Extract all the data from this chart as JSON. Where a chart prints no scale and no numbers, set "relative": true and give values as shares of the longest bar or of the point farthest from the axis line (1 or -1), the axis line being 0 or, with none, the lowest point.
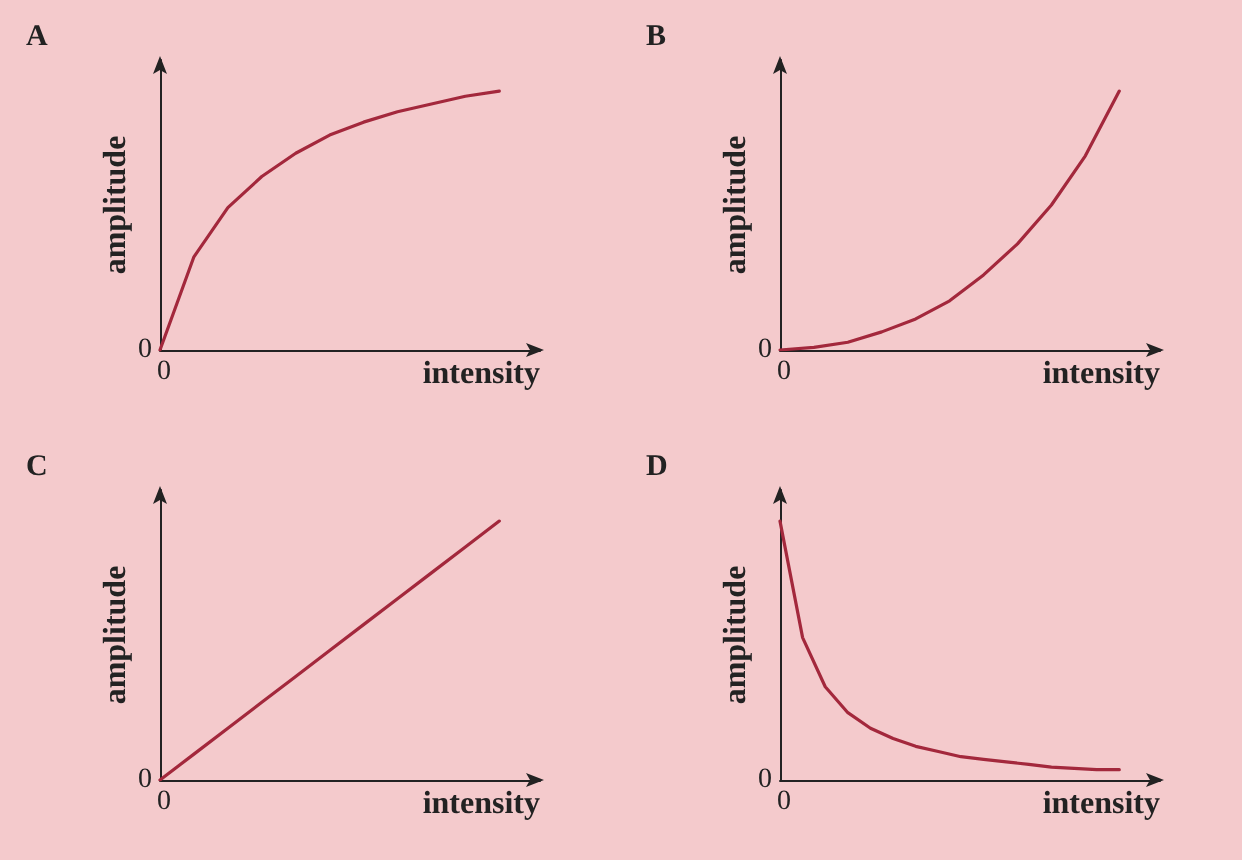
{
  "chart_data": [
    {
      "type": "line",
      "title": "A",
      "xlabel": "intensity",
      "ylabel": "amplitude",
      "relative": true,
      "annotations": [
        "0",
        "0"
      ],
      "categories": [
        null,
        null,
        null,
        null,
        null,
        null,
        null,
        null,
        null,
        null,
        null
      ],
      "series": [
        {
          "color": "#a3283c",
          "values": [
            0,
            0.36,
            0.55,
            0.67,
            0.76,
            0.83,
            0.88,
            0.92,
            0.95,
            0.98,
            1
          ]
        }
      ]
    },
    {
      "type": "line",
      "title": "B",
      "xlabel": "intensity",
      "ylabel": "amplitude",
      "relative": true,
      "annotations": [
        "0",
        "0"
      ],
      "categories": [
        null,
        null,
        null,
        null,
        null,
        null,
        null,
        null,
        null,
        null,
        null
      ],
      "series": [
        {
          "color": "#a3283c",
          "values": [
            0,
            0.01,
            0.03,
            0.07,
            0.12,
            0.19,
            0.29,
            0.41,
            0.56,
            0.75,
            1
          ]
        }
      ]
    },
    {
      "type": "line",
      "title": "C",
      "xlabel": "intensity",
      "ylabel": "amplitude",
      "relative": true,
      "annotations": [
        "0",
        "0"
      ],
      "categories": [
        null,
        null,
        null,
        null,
        null,
        null,
        null,
        null,
        null,
        null,
        null
      ],
      "series": [
        {
          "color": "#a3283c",
          "values": [
            0,
            0.1,
            0.2,
            0.3,
            0.4,
            0.5,
            0.6,
            0.7,
            0.8,
            0.9,
            1
          ]
        }
      ]
    },
    {
      "type": "line",
      "title": "D",
      "xlabel": "intensity",
      "ylabel": "amplitude",
      "relative": true,
      "annotations": [
        "0",
        "0"
      ],
      "categories": [
        null,
        null,
        null,
        null,
        null,
        null,
        null,
        null,
        null,
        null,
        null,
        null,
        null,
        null,
        null,
        null
      ],
      "series": [
        {
          "color": "#a3283c",
          "values": [
            1,
            0.55,
            0.36,
            0.26,
            0.2,
            0.16,
            0.13,
            0.11,
            0.09,
            0.08,
            0.07,
            0.06,
            0.05,
            0.045,
            0.04,
            0.04
          ]
        }
      ]
    }
  ]
}
